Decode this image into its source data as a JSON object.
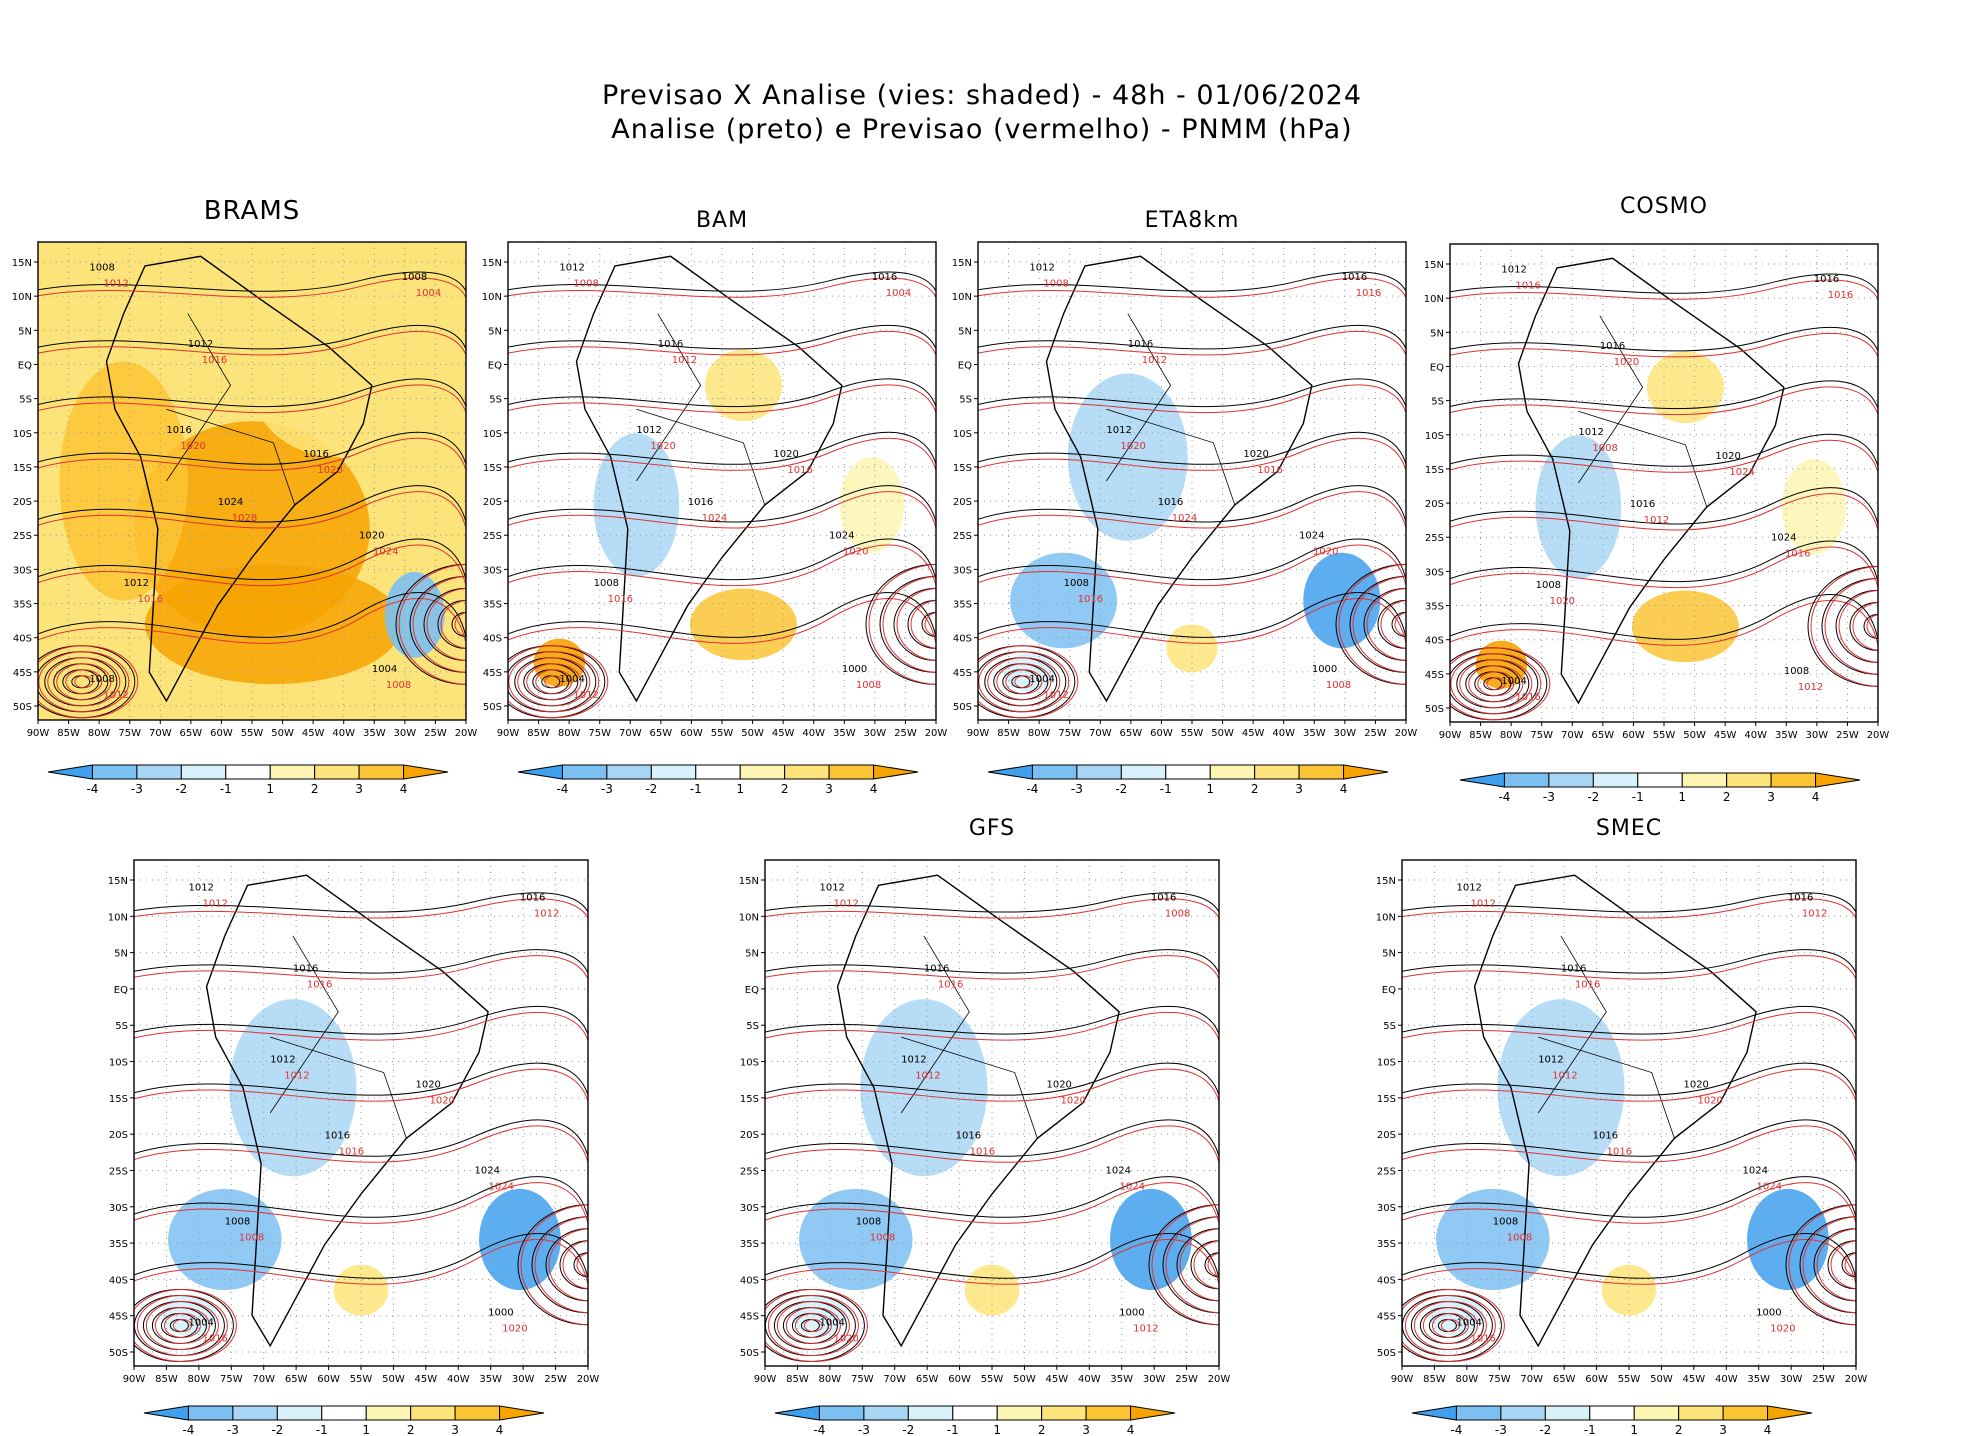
{
  "figure": {
    "title_line1": "Previsao X Analise (vies: shaded) - 48h - 01/06/2024",
    "title_line2": "Analise (preto) e Previsao (vermelho) - PNMM (hPa)"
  },
  "axes": {
    "lat_labels": [
      "15N",
      "10N",
      "5N",
      "EQ",
      "5S",
      "10S",
      "15S",
      "20S",
      "25S",
      "30S",
      "35S",
      "40S",
      "45S",
      "50S"
    ],
    "lon_labels": [
      "90W",
      "85W",
      "80W",
      "75W",
      "70W",
      "65W",
      "60W",
      "55W",
      "50W",
      "45W",
      "40W",
      "35W",
      "30W",
      "25W",
      "20W"
    ]
  },
  "colorbar": {
    "labels": [
      "-4",
      "-3",
      "-2",
      "-1",
      "1",
      "2",
      "3",
      "4"
    ],
    "colors": [
      "#3fa0ee",
      "#7cc0f2",
      "#a9d6f5",
      "#d8f1fb",
      "#ffffff",
      "#fdf6b3",
      "#fde47a",
      "#fbc435",
      "#f7a300"
    ]
  },
  "contour_colors": {
    "analysis": "#000000",
    "forecast": "#e03030"
  },
  "panels": [
    {
      "name": "BRAMS",
      "bias": "pos",
      "labels": {
        "black": [
          "1008",
          "1012",
          "1016",
          "1020",
          "1024",
          "1016",
          "1012",
          "1008",
          "1004",
          "1008"
        ],
        "red": [
          "1012",
          "1016",
          "1020",
          "1024",
          "1028",
          "1020",
          "1016",
          "1012",
          "1008",
          "1004"
        ]
      }
    },
    {
      "name": "BAM",
      "bias": "mixed",
      "labels": {
        "black": [
          "1012",
          "1016",
          "1020",
          "1024",
          "1016",
          "1012",
          "1008",
          "1004",
          "1000",
          "1016"
        ],
        "red": [
          "1008",
          "1012",
          "1016",
          "1020",
          "1024",
          "1020",
          "1016",
          "1012",
          "1008",
          "1004"
        ]
      }
    },
    {
      "name": "ETA8km",
      "bias": "neg",
      "labels": {
        "black": [
          "1012",
          "1016",
          "1020",
          "1024",
          "1016",
          "1012",
          "1008",
          "1004",
          "1000",
          "1016"
        ],
        "red": [
          "1008",
          "1012",
          "1016",
          "1020",
          "1024",
          "1020",
          "1016",
          "1012",
          "1008",
          "1016"
        ]
      }
    },
    {
      "name": "COSMO",
      "bias": "mixed",
      "labels": {
        "black": [
          "1012",
          "1016",
          "1020",
          "1024",
          "1016",
          "1012",
          "1008",
          "1004",
          "1008",
          "1016"
        ],
        "red": [
          "1016",
          "1020",
          "1024",
          "1016",
          "1012",
          "1008",
          "1020",
          "1016",
          "1012",
          "1016"
        ]
      }
    },
    {
      "name": "",
      "bias": "neg",
      "labels": {
        "black": [
          "1012",
          "1016",
          "1020",
          "1024",
          "1016",
          "1012",
          "1008",
          "1004",
          "1000",
          "1016"
        ],
        "red": [
          "1012",
          "1016",
          "1020",
          "1024",
          "1016",
          "1012",
          "1008",
          "1016",
          "1020",
          "1012"
        ]
      }
    },
    {
      "name": "GFS",
      "bias": "neg",
      "labels": {
        "black": [
          "1012",
          "1016",
          "1020",
          "1024",
          "1016",
          "1012",
          "1008",
          "1004",
          "1000",
          "1016"
        ],
        "red": [
          "1012",
          "1016",
          "1020",
          "1024",
          "1016",
          "1012",
          "1008",
          "1020",
          "1012",
          "1008"
        ]
      }
    },
    {
      "name": "SMEC",
      "bias": "neg",
      "labels": {
        "black": [
          "1012",
          "1016",
          "1020",
          "1024",
          "1016",
          "1012",
          "1008",
          "1004",
          "1000",
          "1016"
        ],
        "red": [
          "1012",
          "1016",
          "1020",
          "1024",
          "1016",
          "1012",
          "1008",
          "1016",
          "1020",
          "1012"
        ]
      }
    }
  ]
}
